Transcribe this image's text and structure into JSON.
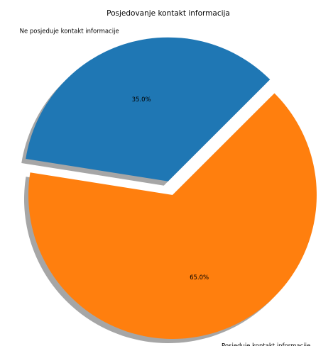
{
  "chart_data": {
    "type": "pie",
    "title": "Posjedovanje kontakt informacija",
    "labels": [
      "Ne posjeduje kontakt informacije",
      "Posjeduje kontakt informacije"
    ],
    "values": [
      35.0,
      65.0
    ],
    "percent_labels": [
      "35.0%",
      "65.0%"
    ],
    "colors": [
      "#1f77b4",
      "#ff7f0e"
    ],
    "explode": [
      0.1,
      0
    ],
    "shadow": true,
    "start_angle_deg": 45
  }
}
